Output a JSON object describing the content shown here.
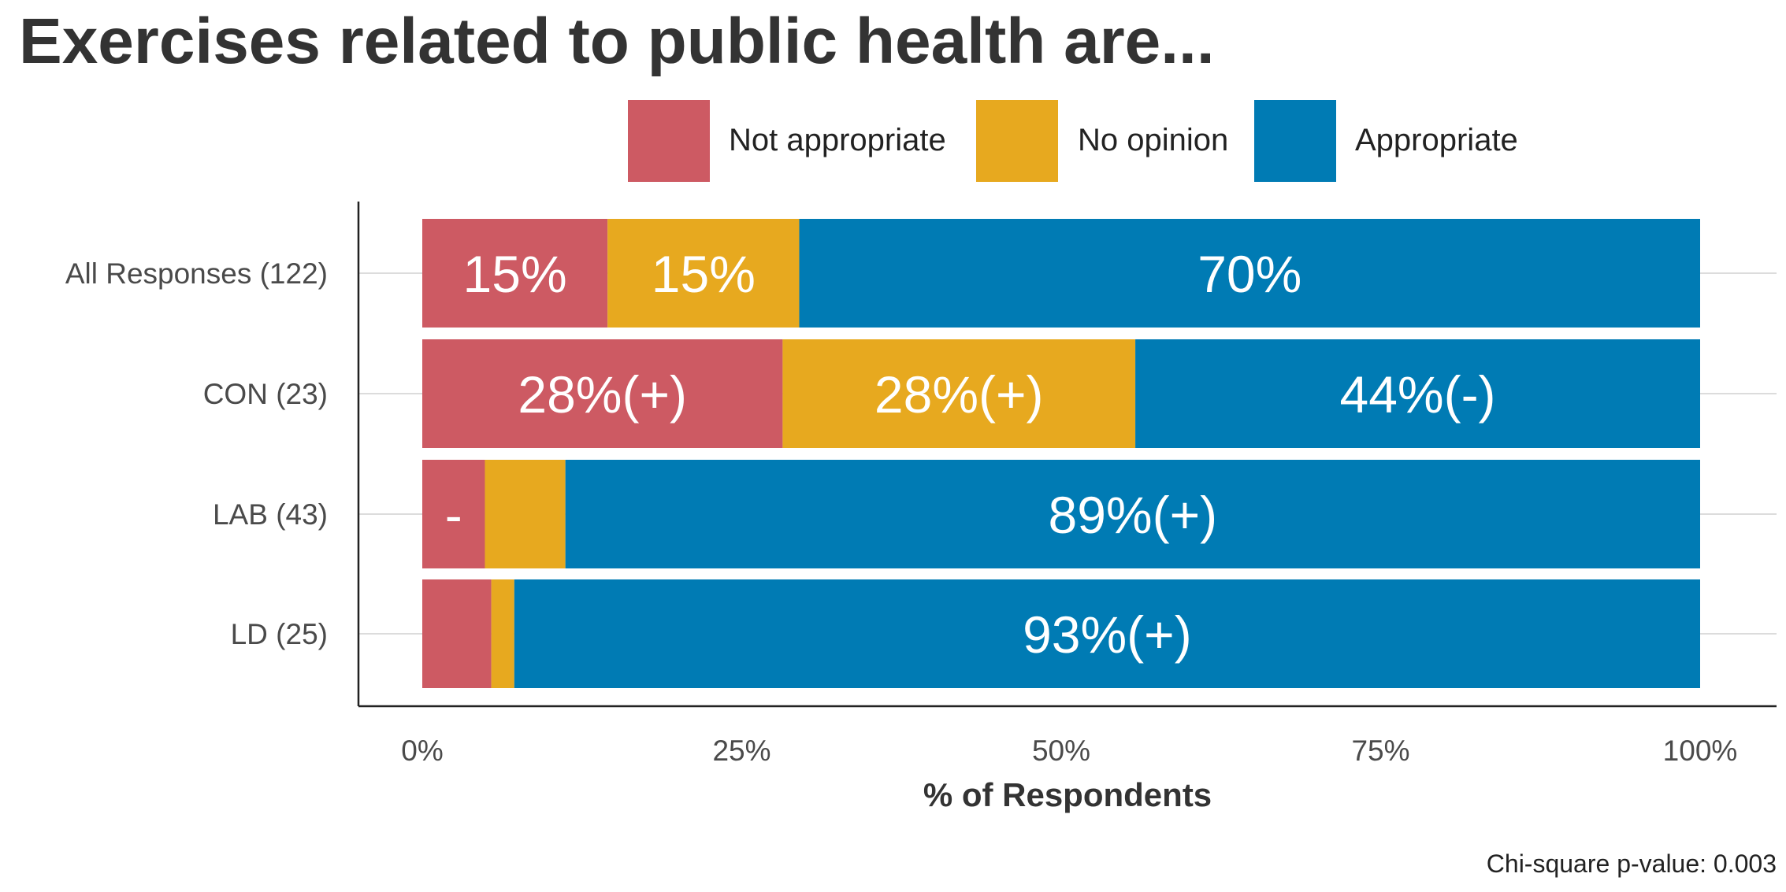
{
  "chart_data": {
    "type": "bar",
    "orientation": "horizontal",
    "stacked": true,
    "title": "Exercises related to public health are...",
    "xlabel": "% of Respondents",
    "ylabel": "",
    "xlim": [
      0,
      100
    ],
    "x_ticks": [
      "0%",
      "25%",
      "50%",
      "75%",
      "100%"
    ],
    "x_tick_values": [
      0,
      25,
      50,
      75,
      100
    ],
    "grid": "horizontal lines at categories",
    "legend_position": "top",
    "categories": [
      "All Responses (122)",
      "CON (23)",
      "LAB (43)",
      "LD (25)"
    ],
    "series": [
      {
        "name": "Not appropriate",
        "color": "#cd5a63",
        "values": [
          14.5,
          28.2,
          4.9,
          5.4
        ],
        "labels": [
          "15%",
          "28%(+)",
          "-",
          ""
        ]
      },
      {
        "name": "No opinion",
        "color": "#e7a91f",
        "values": [
          15.0,
          27.6,
          6.3,
          1.8
        ],
        "labels": [
          "15%",
          "28%(+)",
          "",
          ""
        ]
      },
      {
        "name": "Appropriate",
        "color": "#007bb4",
        "values": [
          70.5,
          44.2,
          88.8,
          92.8
        ],
        "labels": [
          "70%",
          "44%(-)",
          "89%(+)",
          "93%(+)"
        ]
      }
    ],
    "annotation": "Chi-square p-value: 0.003"
  }
}
